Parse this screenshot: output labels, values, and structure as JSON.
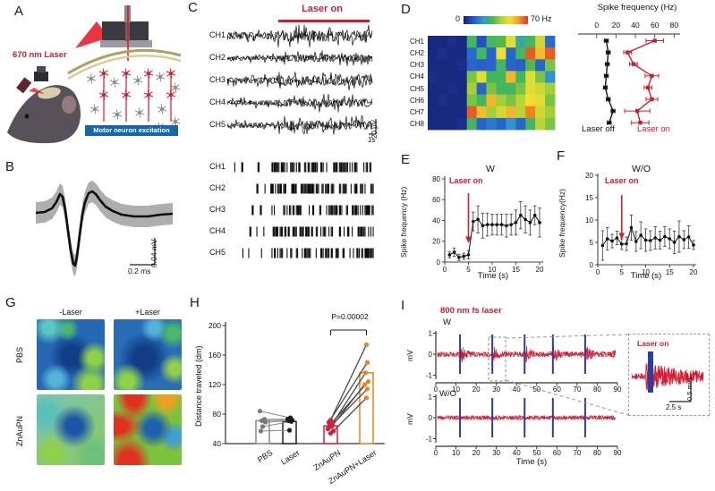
{
  "figure": {
    "panels": {
      "a": {
        "label": "A",
        "laser_label": "670 nm Laser",
        "caption": "Motor neuron excitation"
      },
      "b": {
        "label": "B",
        "scale_time": "0.2 ms",
        "scale_voltage": "0.04 mV"
      },
      "c": {
        "label": "C",
        "laser_on": "Laser on",
        "channels": [
          "CH1",
          "CH2",
          "CH3",
          "CH4",
          "CH5"
        ],
        "scale_voltage": "20 μV",
        "scale_time": "1s"
      },
      "d": {
        "label": "D",
        "colorbar_min": "0",
        "colorbar_max": "70 Hz",
        "channels": [
          "CH1",
          "CH2",
          "CH3",
          "CH4",
          "CH5",
          "CH6",
          "CH7",
          "CH8"
        ],
        "axis_title": "Spike frequency (Hz)",
        "legend_off": "Laser off",
        "legend_on": "Laser on"
      },
      "e": {
        "label": "E",
        "title": "W",
        "annotation": "Laser on",
        "ylabel": "Spike frequency (Hz)",
        "xlabel": "Time (s)"
      },
      "f": {
        "label": "F",
        "title": "W/O",
        "annotation": "Laser on",
        "ylabel": "Spike frequency(Hz)",
        "xlabel": "Time (s)"
      },
      "g": {
        "label": "G",
        "col_labels": [
          "-Laser",
          "+Laser"
        ],
        "row_labels": [
          "PBS",
          "ZnAuPN"
        ]
      },
      "h": {
        "label": "H",
        "ylabel": "Distance traveled (dm)",
        "p_label": "P=0.00002"
      },
      "i": {
        "label": "I",
        "title": "800 nm fs laser",
        "trace_labels": [
          "W",
          "W/O"
        ],
        "ylabel": "mV",
        "xlabel": "Time (s)",
        "inset": {
          "label": "Laser on",
          "scale_time": "2.5 s",
          "scale_voltage": "0.5 mv"
        }
      }
    }
  },
  "chart_data": {
    "d_heatmap": {
      "type": "heatmap",
      "rows": [
        "CH1",
        "CH2",
        "CH3",
        "CH4",
        "CH5",
        "CH6",
        "CH7",
        "CH8"
      ],
      "colorbar": {
        "min": 0,
        "max": 70,
        "unit": "Hz"
      },
      "values": [
        [
          2,
          2,
          3,
          2,
          30,
          10,
          30,
          32,
          48,
          25,
          30,
          45,
          14
        ],
        [
          2,
          3,
          2,
          2,
          14,
          30,
          13,
          50,
          13,
          30,
          66,
          55,
          66
        ],
        [
          2,
          2,
          2,
          3,
          13,
          12,
          13,
          30,
          13,
          12,
          32,
          13,
          36
        ],
        [
          3,
          2,
          2,
          2,
          36,
          48,
          30,
          30,
          56,
          30,
          48,
          36,
          20
        ],
        [
          2,
          2,
          3,
          2,
          40,
          13,
          36,
          30,
          30,
          36,
          48,
          45,
          40
        ],
        [
          2,
          3,
          2,
          2,
          36,
          30,
          56,
          40,
          36,
          42,
          50,
          48,
          36
        ],
        [
          2,
          2,
          2,
          2,
          66,
          55,
          40,
          46,
          56,
          42,
          62,
          45,
          40
        ],
        [
          2,
          2,
          2,
          3,
          30,
          13,
          16,
          13,
          20,
          13,
          30,
          42,
          36
        ]
      ]
    },
    "d_profile": {
      "type": "line",
      "title": "Spike frequency (Hz)",
      "xticks": [
        0,
        20,
        40,
        60,
        80
      ],
      "xlim": [
        0,
        85
      ],
      "categories": [
        "CH1",
        "CH2",
        "CH3",
        "CH4",
        "CH5",
        "CH6",
        "CH7",
        "CH8"
      ],
      "series": [
        {
          "name": "Laser off",
          "color": "#111111",
          "marker": "circle",
          "values": [
            10,
            12,
            11,
            10,
            9,
            12,
            17,
            13
          ],
          "errors": [
            2,
            2,
            2,
            2,
            2,
            2,
            2,
            2
          ]
        },
        {
          "name": "Laser on",
          "color": "#c8202f",
          "marker": "square",
          "values": [
            60,
            32,
            38,
            57,
            53,
            57,
            42,
            45
          ],
          "errors": [
            9,
            4,
            4,
            7,
            4,
            6,
            13,
            9
          ]
        }
      ]
    },
    "e_timecourse": {
      "type": "line",
      "title": "W",
      "xlabel": "Time (s)",
      "ylabel": "Spike frequency (Hz)",
      "xlim": [
        0,
        21
      ],
      "ylim": [
        0,
        80
      ],
      "xticks": [
        0,
        5,
        10,
        15,
        20
      ],
      "yticks": [
        0,
        20,
        40,
        60,
        80
      ],
      "laser_on_time_s": 5,
      "color": "#111111",
      "annotation_color": "#c8202f",
      "x": [
        1,
        2,
        3,
        4,
        5,
        6,
        7,
        8,
        9,
        10,
        11,
        12,
        13,
        14,
        15,
        16,
        17,
        18,
        19,
        20
      ],
      "values": [
        7,
        9.5,
        4.5,
        5.5,
        7,
        39,
        41,
        35,
        36,
        36,
        36,
        36,
        35,
        36,
        38,
        45,
        41,
        38,
        45,
        38
      ],
      "errors": [
        3,
        4,
        3,
        3,
        4,
        9,
        13,
        12,
        11,
        10,
        10,
        10,
        11,
        10,
        12,
        13,
        13,
        12,
        9,
        14
      ]
    },
    "f_timecourse": {
      "type": "line",
      "title": "W/O",
      "xlabel": "Time (s)",
      "ylabel": "Spike frequency(Hz)",
      "xlim": [
        0,
        21
      ],
      "ylim": [
        0,
        20
      ],
      "xticks": [
        0,
        5,
        10,
        15,
        20
      ],
      "yticks": [
        0,
        5,
        10,
        15,
        20
      ],
      "laser_on_time_s": 5,
      "color": "#111111",
      "annotation_color": "#c8202f",
      "x": [
        1,
        2,
        3,
        4,
        5,
        6,
        7,
        8,
        9,
        10,
        11,
        12,
        13,
        14,
        15,
        16,
        17,
        18,
        19,
        20
      ],
      "values": [
        4.3,
        5.8,
        5.3,
        6.0,
        4.6,
        4.7,
        8.3,
        5.2,
        6.6,
        5.5,
        5.4,
        6.0,
        5.5,
        6.3,
        5.8,
        5.0,
        6.3,
        5.6,
        6.2,
        4.4
      ],
      "errors": [
        3.3,
        2.5,
        1.5,
        1.5,
        1.2,
        1.5,
        2.8,
        2.2,
        3.0,
        2.5,
        2.2,
        2.5,
        2.0,
        2.2,
        2.2,
        2.5,
        3.5,
        2.0,
        2.5,
        1.0
      ]
    },
    "h_bars": {
      "type": "bar",
      "ylabel": "Distance traveled (dm)",
      "ylim": [
        40,
        200
      ],
      "yticks": [
        40,
        80,
        120,
        160,
        200
      ],
      "categories": [
        "PBS",
        "Laser",
        "ZnAuPN",
        "ZnAuPN+Laser"
      ],
      "values": [
        71,
        70,
        64,
        136
      ],
      "bar_colors": [
        "#8a8a8a",
        "#1f1f1f",
        "#d2203a",
        "#e8821e"
      ],
      "points": [
        [
          84,
          73,
          71,
          69,
          63,
          57
        ],
        [
          75,
          73,
          72,
          71,
          70,
          58
        ],
        [
          72,
          69,
          67,
          65,
          63,
          60,
          57,
          54
        ],
        [
          174,
          150,
          136,
          124,
          120,
          114,
          102
        ]
      ],
      "p_label": "P=0.00002"
    },
    "i_traces": {
      "type": "trace",
      "title": "800 nm fs laser",
      "traces": [
        "W",
        "W/O"
      ],
      "ylabel": "mV",
      "yticks": [
        1,
        0,
        -1
      ],
      "xlabel": "Time (s)",
      "xticks": [
        0,
        10,
        20,
        30,
        40,
        50,
        60,
        70,
        80,
        90
      ],
      "xlim": [
        0,
        90
      ],
      "pulse_times_s": [
        12,
        28,
        44,
        58,
        74
      ],
      "pulse_color": "#2a3f9f",
      "trace_color": "#d5182e",
      "inset": {
        "label": "Laser on",
        "scale_time": "2.5 s",
        "scale_voltage": "0.5 mv"
      }
    }
  }
}
